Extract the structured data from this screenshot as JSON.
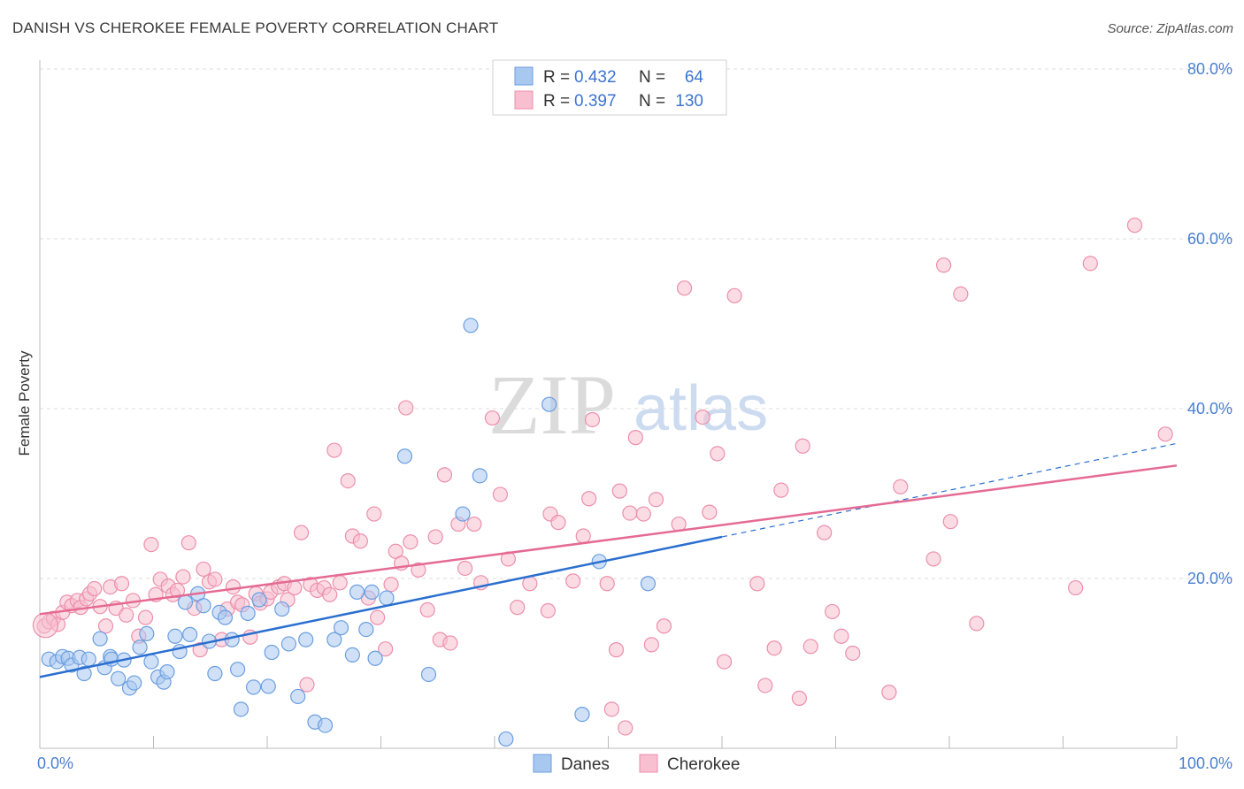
{
  "header": {
    "title": "DANISH VS CHEROKEE FEMALE POVERTY CORRELATION CHART",
    "source": "Source: ZipAtlas.com"
  },
  "watermark": {
    "zip": "ZIP",
    "atlas": "atlas"
  },
  "colors": {
    "danes_fill": "#a9c8f0",
    "danes_stroke": "#6a9ee0",
    "danes_line": "#2a6fcf",
    "cherokee_fill": "#f7bfd0",
    "cherokee_stroke": "#ec8fab",
    "cherokee_line": "#e56a93",
    "tick_text": "#4a7fd0",
    "grid": "#dddddd"
  },
  "legend": {
    "rows": [
      {
        "r_label": "R =",
        "r_value": "0.432",
        "n_label": "N =",
        "n_value": "64"
      },
      {
        "r_label": "R =",
        "r_value": "0.397",
        "n_label": "N =",
        "n_value": "130"
      }
    ]
  },
  "bottom_legend": {
    "danes": "Danes",
    "cherokee": "Cherokee"
  },
  "chart_data": {
    "type": "scatter",
    "title": "DANISH VS CHEROKEE FEMALE POVERTY CORRELATION CHART",
    "xlabel": "",
    "ylabel": "Female Poverty",
    "xlim": [
      0,
      100
    ],
    "ylim": [
      0,
      80
    ],
    "x_tick_labels": [
      "0.0%",
      "100.0%"
    ],
    "y_tick_labels": [
      "20.0%",
      "40.0%",
      "60.0%",
      "80.0%"
    ],
    "y_ticks": [
      20,
      40,
      60,
      80
    ],
    "x_minor_ticks": [
      10,
      20,
      30,
      40,
      50,
      60,
      70,
      80,
      90,
      100
    ],
    "grid": true,
    "legend_position": "top-center",
    "series": [
      {
        "name": "Danes",
        "R": 0.432,
        "N": 64,
        "trend": {
          "x0": 0,
          "y0": 8.4,
          "x1": 60,
          "y1": 24.9,
          "dashed_to_x": 100,
          "dashed_to_y": 35.9
        },
        "points": [
          [
            0.8,
            10.5
          ],
          [
            1.5,
            10.2
          ],
          [
            2.0,
            10.8
          ],
          [
            2.5,
            10.6
          ],
          [
            2.8,
            9.8
          ],
          [
            3.5,
            10.7
          ],
          [
            3.9,
            8.8
          ],
          [
            4.3,
            10.5
          ],
          [
            5.3,
            12.9
          ],
          [
            5.7,
            9.5
          ],
          [
            6.2,
            10.8
          ],
          [
            6.3,
            10.5
          ],
          [
            6.9,
            8.2
          ],
          [
            7.4,
            10.4
          ],
          [
            7.9,
            7.1
          ],
          [
            8.3,
            7.7
          ],
          [
            8.8,
            11.9
          ],
          [
            9.4,
            13.5
          ],
          [
            9.8,
            10.2
          ],
          [
            10.4,
            8.4
          ],
          [
            10.9,
            7.8
          ],
          [
            11.2,
            9.0
          ],
          [
            11.9,
            13.2
          ],
          [
            12.3,
            11.4
          ],
          [
            12.8,
            17.2
          ],
          [
            13.2,
            13.4
          ],
          [
            13.9,
            18.2
          ],
          [
            14.4,
            16.8
          ],
          [
            14.9,
            12.6
          ],
          [
            15.4,
            8.8
          ],
          [
            15.8,
            16.0
          ],
          [
            16.3,
            15.4
          ],
          [
            16.9,
            12.8
          ],
          [
            17.4,
            9.3
          ],
          [
            17.7,
            4.6
          ],
          [
            18.3,
            15.9
          ],
          [
            18.8,
            7.2
          ],
          [
            19.3,
            17.5
          ],
          [
            20.1,
            7.3
          ],
          [
            20.4,
            11.3
          ],
          [
            21.3,
            16.4
          ],
          [
            21.9,
            12.3
          ],
          [
            22.7,
            6.1
          ],
          [
            23.4,
            12.8
          ],
          [
            24.2,
            3.1
          ],
          [
            25.1,
            2.7
          ],
          [
            25.9,
            12.8
          ],
          [
            26.5,
            14.2
          ],
          [
            27.5,
            11.0
          ],
          [
            27.9,
            18.4
          ],
          [
            28.7,
            14.0
          ],
          [
            29.2,
            18.4
          ],
          [
            29.5,
            10.6
          ],
          [
            30.5,
            17.7
          ],
          [
            32.1,
            34.4
          ],
          [
            34.2,
            8.7
          ],
          [
            37.2,
            27.6
          ],
          [
            37.9,
            49.8
          ],
          [
            38.7,
            32.1
          ],
          [
            41.0,
            1.1
          ],
          [
            44.8,
            40.5
          ],
          [
            47.7,
            4.0
          ],
          [
            49.2,
            22.0
          ],
          [
            53.5,
            19.4
          ]
        ]
      },
      {
        "name": "Cherokee",
        "R": 0.397,
        "N": 130,
        "trend": {
          "x0": 0,
          "y0": 15.8,
          "x1": 100,
          "y1": 33.3
        },
        "points": [
          [
            0.4,
            14.4
          ],
          [
            0.8,
            14.9
          ],
          [
            1.2,
            15.3
          ],
          [
            1.6,
            14.6
          ],
          [
            2.0,
            16.0
          ],
          [
            2.4,
            17.2
          ],
          [
            2.8,
            16.8
          ],
          [
            3.3,
            17.4
          ],
          [
            3.6,
            16.6
          ],
          [
            4.1,
            17.6
          ],
          [
            4.4,
            18.2
          ],
          [
            4.8,
            18.8
          ],
          [
            5.3,
            16.7
          ],
          [
            5.8,
            14.4
          ],
          [
            6.2,
            19.0
          ],
          [
            6.7,
            16.5
          ],
          [
            7.2,
            19.4
          ],
          [
            7.6,
            15.7
          ],
          [
            8.2,
            17.4
          ],
          [
            8.7,
            13.2
          ],
          [
            9.3,
            15.4
          ],
          [
            9.8,
            24.0
          ],
          [
            10.2,
            18.1
          ],
          [
            10.6,
            19.9
          ],
          [
            11.3,
            19.1
          ],
          [
            11.7,
            18.1
          ],
          [
            12.1,
            18.6
          ],
          [
            12.6,
            20.2
          ],
          [
            13.1,
            24.2
          ],
          [
            13.6,
            16.5
          ],
          [
            14.1,
            11.6
          ],
          [
            14.4,
            21.1
          ],
          [
            14.9,
            19.6
          ],
          [
            15.4,
            19.9
          ],
          [
            16.0,
            12.8
          ],
          [
            16.5,
            16.4
          ],
          [
            17.0,
            19.0
          ],
          [
            17.4,
            17.2
          ],
          [
            17.8,
            16.9
          ],
          [
            18.5,
            13.1
          ],
          [
            19.0,
            18.2
          ],
          [
            19.4,
            17.1
          ],
          [
            20.0,
            17.6
          ],
          [
            20.3,
            18.4
          ],
          [
            21.0,
            19.0
          ],
          [
            21.5,
            19.4
          ],
          [
            21.8,
            17.5
          ],
          [
            22.4,
            18.9
          ],
          [
            23.0,
            25.4
          ],
          [
            23.5,
            7.5
          ],
          [
            23.8,
            19.3
          ],
          [
            24.4,
            18.6
          ],
          [
            25.0,
            18.9
          ],
          [
            25.5,
            18.1
          ],
          [
            25.9,
            35.1
          ],
          [
            26.4,
            19.5
          ],
          [
            27.1,
            31.5
          ],
          [
            27.5,
            25.0
          ],
          [
            28.2,
            24.4
          ],
          [
            28.9,
            17.7
          ],
          [
            29.4,
            27.6
          ],
          [
            29.7,
            15.4
          ],
          [
            30.4,
            11.7
          ],
          [
            30.9,
            19.3
          ],
          [
            31.3,
            23.2
          ],
          [
            31.8,
            21.8
          ],
          [
            32.2,
            40.1
          ],
          [
            32.6,
            24.3
          ],
          [
            33.3,
            21.0
          ],
          [
            34.1,
            16.3
          ],
          [
            34.8,
            24.9
          ],
          [
            35.2,
            12.8
          ],
          [
            35.6,
            32.2
          ],
          [
            36.1,
            12.4
          ],
          [
            36.8,
            26.4
          ],
          [
            37.4,
            21.2
          ],
          [
            38.2,
            26.4
          ],
          [
            38.8,
            19.5
          ],
          [
            39.8,
            38.9
          ],
          [
            40.5,
            29.9
          ],
          [
            41.2,
            22.3
          ],
          [
            42.0,
            16.6
          ],
          [
            43.1,
            19.4
          ],
          [
            44.7,
            16.2
          ],
          [
            44.9,
            27.6
          ],
          [
            45.6,
            26.6
          ],
          [
            46.9,
            19.7
          ],
          [
            47.8,
            25.0
          ],
          [
            48.3,
            29.4
          ],
          [
            48.6,
            38.7
          ],
          [
            49.9,
            19.4
          ],
          [
            50.3,
            4.6
          ],
          [
            50.7,
            11.6
          ],
          [
            51.0,
            30.3
          ],
          [
            51.5,
            2.4
          ],
          [
            51.9,
            27.7
          ],
          [
            52.4,
            36.6
          ],
          [
            53.1,
            27.6
          ],
          [
            53.8,
            12.2
          ],
          [
            54.2,
            29.3
          ],
          [
            54.9,
            14.4
          ],
          [
            56.2,
            26.4
          ],
          [
            56.7,
            54.2
          ],
          [
            58.3,
            39.0
          ],
          [
            58.9,
            27.8
          ],
          [
            59.6,
            34.7
          ],
          [
            60.2,
            10.2
          ],
          [
            61.1,
            53.3
          ],
          [
            63.1,
            19.4
          ],
          [
            63.8,
            7.4
          ],
          [
            64.6,
            11.8
          ],
          [
            65.2,
            30.4
          ],
          [
            66.8,
            5.9
          ],
          [
            67.1,
            35.6
          ],
          [
            67.8,
            12.0
          ],
          [
            69.0,
            25.4
          ],
          [
            69.7,
            16.1
          ],
          [
            70.5,
            13.2
          ],
          [
            71.5,
            11.2
          ],
          [
            74.7,
            6.6
          ],
          [
            75.7,
            30.8
          ],
          [
            78.6,
            22.3
          ],
          [
            79.5,
            56.9
          ],
          [
            80.1,
            26.7
          ],
          [
            81.0,
            53.5
          ],
          [
            82.4,
            14.7
          ],
          [
            91.1,
            18.9
          ],
          [
            92.4,
            57.1
          ],
          [
            96.3,
            61.6
          ],
          [
            99.0,
            37.0
          ]
        ]
      }
    ]
  }
}
